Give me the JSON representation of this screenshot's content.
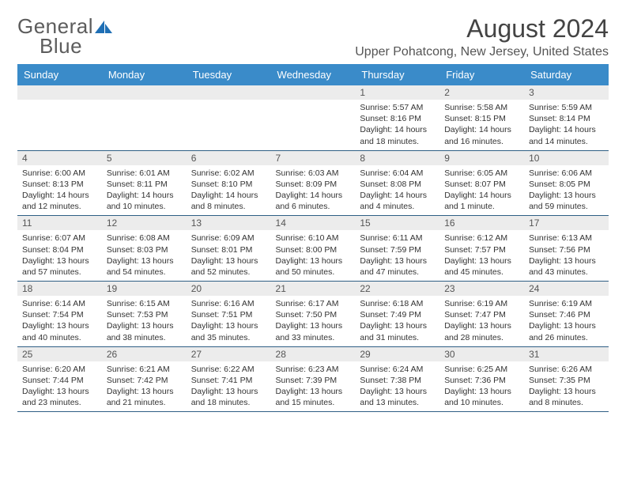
{
  "logo": {
    "word1": "General",
    "word2": "Blue",
    "icon_fill": "#1f6fb5"
  },
  "header": {
    "month_title": "August 2024",
    "location": "Upper Pohatcong, New Jersey, United States"
  },
  "colors": {
    "header_bg": "#3a8bc9",
    "header_text": "#ffffff",
    "daynum_bg": "#ececec",
    "rule": "#2f5f85"
  },
  "day_labels": [
    "Sunday",
    "Monday",
    "Tuesday",
    "Wednesday",
    "Thursday",
    "Friday",
    "Saturday"
  ],
  "weeks": [
    [
      null,
      null,
      null,
      null,
      {
        "n": "1",
        "sunrise": "5:57 AM",
        "sunset": "8:16 PM",
        "daylight": "14 hours and 18 minutes."
      },
      {
        "n": "2",
        "sunrise": "5:58 AM",
        "sunset": "8:15 PM",
        "daylight": "14 hours and 16 minutes."
      },
      {
        "n": "3",
        "sunrise": "5:59 AM",
        "sunset": "8:14 PM",
        "daylight": "14 hours and 14 minutes."
      }
    ],
    [
      {
        "n": "4",
        "sunrise": "6:00 AM",
        "sunset": "8:13 PM",
        "daylight": "14 hours and 12 minutes."
      },
      {
        "n": "5",
        "sunrise": "6:01 AM",
        "sunset": "8:11 PM",
        "daylight": "14 hours and 10 minutes."
      },
      {
        "n": "6",
        "sunrise": "6:02 AM",
        "sunset": "8:10 PM",
        "daylight": "14 hours and 8 minutes."
      },
      {
        "n": "7",
        "sunrise": "6:03 AM",
        "sunset": "8:09 PM",
        "daylight": "14 hours and 6 minutes."
      },
      {
        "n": "8",
        "sunrise": "6:04 AM",
        "sunset": "8:08 PM",
        "daylight": "14 hours and 4 minutes."
      },
      {
        "n": "9",
        "sunrise": "6:05 AM",
        "sunset": "8:07 PM",
        "daylight": "14 hours and 1 minute."
      },
      {
        "n": "10",
        "sunrise": "6:06 AM",
        "sunset": "8:05 PM",
        "daylight": "13 hours and 59 minutes."
      }
    ],
    [
      {
        "n": "11",
        "sunrise": "6:07 AM",
        "sunset": "8:04 PM",
        "daylight": "13 hours and 57 minutes."
      },
      {
        "n": "12",
        "sunrise": "6:08 AM",
        "sunset": "8:03 PM",
        "daylight": "13 hours and 54 minutes."
      },
      {
        "n": "13",
        "sunrise": "6:09 AM",
        "sunset": "8:01 PM",
        "daylight": "13 hours and 52 minutes."
      },
      {
        "n": "14",
        "sunrise": "6:10 AM",
        "sunset": "8:00 PM",
        "daylight": "13 hours and 50 minutes."
      },
      {
        "n": "15",
        "sunrise": "6:11 AM",
        "sunset": "7:59 PM",
        "daylight": "13 hours and 47 minutes."
      },
      {
        "n": "16",
        "sunrise": "6:12 AM",
        "sunset": "7:57 PM",
        "daylight": "13 hours and 45 minutes."
      },
      {
        "n": "17",
        "sunrise": "6:13 AM",
        "sunset": "7:56 PM",
        "daylight": "13 hours and 43 minutes."
      }
    ],
    [
      {
        "n": "18",
        "sunrise": "6:14 AM",
        "sunset": "7:54 PM",
        "daylight": "13 hours and 40 minutes."
      },
      {
        "n": "19",
        "sunrise": "6:15 AM",
        "sunset": "7:53 PM",
        "daylight": "13 hours and 38 minutes."
      },
      {
        "n": "20",
        "sunrise": "6:16 AM",
        "sunset": "7:51 PM",
        "daylight": "13 hours and 35 minutes."
      },
      {
        "n": "21",
        "sunrise": "6:17 AM",
        "sunset": "7:50 PM",
        "daylight": "13 hours and 33 minutes."
      },
      {
        "n": "22",
        "sunrise": "6:18 AM",
        "sunset": "7:49 PM",
        "daylight": "13 hours and 31 minutes."
      },
      {
        "n": "23",
        "sunrise": "6:19 AM",
        "sunset": "7:47 PM",
        "daylight": "13 hours and 28 minutes."
      },
      {
        "n": "24",
        "sunrise": "6:19 AM",
        "sunset": "7:46 PM",
        "daylight": "13 hours and 26 minutes."
      }
    ],
    [
      {
        "n": "25",
        "sunrise": "6:20 AM",
        "sunset": "7:44 PM",
        "daylight": "13 hours and 23 minutes."
      },
      {
        "n": "26",
        "sunrise": "6:21 AM",
        "sunset": "7:42 PM",
        "daylight": "13 hours and 21 minutes."
      },
      {
        "n": "27",
        "sunrise": "6:22 AM",
        "sunset": "7:41 PM",
        "daylight": "13 hours and 18 minutes."
      },
      {
        "n": "28",
        "sunrise": "6:23 AM",
        "sunset": "7:39 PM",
        "daylight": "13 hours and 15 minutes."
      },
      {
        "n": "29",
        "sunrise": "6:24 AM",
        "sunset": "7:38 PM",
        "daylight": "13 hours and 13 minutes."
      },
      {
        "n": "30",
        "sunrise": "6:25 AM",
        "sunset": "7:36 PM",
        "daylight": "13 hours and 10 minutes."
      },
      {
        "n": "31",
        "sunrise": "6:26 AM",
        "sunset": "7:35 PM",
        "daylight": "13 hours and 8 minutes."
      }
    ]
  ],
  "labels": {
    "sunrise": "Sunrise: ",
    "sunset": "Sunset: ",
    "daylight": "Daylight: "
  }
}
